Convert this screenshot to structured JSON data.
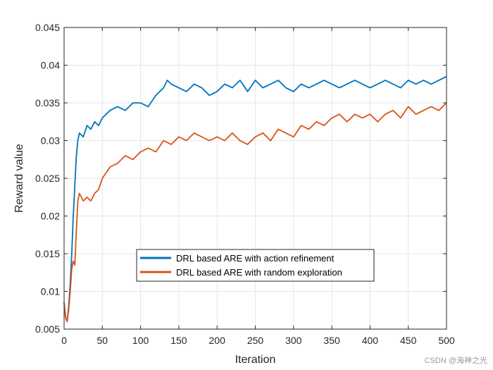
{
  "chart_data": {
    "type": "line",
    "title": "",
    "xlabel": "Iteration",
    "ylabel": "Reward value",
    "xlim": [
      0,
      500
    ],
    "ylim": [
      0.005,
      0.045
    ],
    "xticks": [
      0,
      50,
      100,
      150,
      200,
      250,
      300,
      350,
      400,
      450,
      500
    ],
    "yticks": [
      0.005,
      0.01,
      0.015,
      0.02,
      0.025,
      0.03,
      0.035,
      0.04,
      0.045
    ],
    "xtick_labels": [
      "0",
      "50",
      "100",
      "150",
      "200",
      "250",
      "300",
      "350",
      "400",
      "450",
      "500"
    ],
    "ytick_labels": [
      "0.005",
      "0.01",
      "0.015",
      "0.02",
      "0.025",
      "0.03",
      "0.035",
      "0.04",
      "0.045"
    ],
    "grid": true,
    "legend_position": "lower-center",
    "series": [
      {
        "name": "DRL based ARE with action refinement",
        "color": "#0072BD",
        "x": [
          0,
          2,
          4,
          6,
          8,
          10,
          12,
          14,
          16,
          18,
          20,
          25,
          30,
          35,
          40,
          45,
          50,
          60,
          70,
          80,
          90,
          100,
          110,
          120,
          130,
          135,
          140,
          150,
          160,
          170,
          180,
          190,
          200,
          210,
          220,
          230,
          240,
          250,
          260,
          270,
          280,
          290,
          300,
          310,
          320,
          330,
          340,
          350,
          360,
          370,
          380,
          390,
          400,
          410,
          420,
          430,
          440,
          450,
          460,
          470,
          480,
          490,
          500
        ],
        "values": [
          0.0085,
          0.0065,
          0.006,
          0.008,
          0.011,
          0.015,
          0.02,
          0.024,
          0.028,
          0.03,
          0.031,
          0.0305,
          0.032,
          0.0315,
          0.0325,
          0.032,
          0.033,
          0.034,
          0.0345,
          0.034,
          0.035,
          0.035,
          0.0345,
          0.036,
          0.037,
          0.038,
          0.0375,
          0.037,
          0.0365,
          0.0375,
          0.037,
          0.036,
          0.0365,
          0.0375,
          0.037,
          0.038,
          0.0365,
          0.038,
          0.037,
          0.0375,
          0.038,
          0.037,
          0.0365,
          0.0375,
          0.037,
          0.0375,
          0.038,
          0.0375,
          0.037,
          0.0375,
          0.038,
          0.0375,
          0.037,
          0.0375,
          0.038,
          0.0375,
          0.037,
          0.038,
          0.0375,
          0.038,
          0.0375,
          0.038,
          0.0385
        ]
      },
      {
        "name": "DRL based ARE with random exploration",
        "color": "#D95319",
        "x": [
          0,
          2,
          4,
          6,
          8,
          10,
          12,
          14,
          16,
          18,
          20,
          25,
          30,
          35,
          40,
          45,
          50,
          60,
          70,
          80,
          90,
          100,
          110,
          120,
          130,
          140,
          150,
          160,
          170,
          180,
          190,
          200,
          210,
          220,
          230,
          240,
          250,
          260,
          270,
          280,
          290,
          300,
          310,
          320,
          330,
          340,
          350,
          360,
          370,
          380,
          390,
          400,
          410,
          420,
          430,
          440,
          450,
          460,
          470,
          480,
          490,
          500
        ],
        "values": [
          0.0085,
          0.0065,
          0.006,
          0.0075,
          0.01,
          0.013,
          0.014,
          0.0135,
          0.018,
          0.022,
          0.023,
          0.022,
          0.0225,
          0.022,
          0.023,
          0.0235,
          0.025,
          0.0265,
          0.027,
          0.028,
          0.0275,
          0.0285,
          0.029,
          0.0285,
          0.03,
          0.0295,
          0.0305,
          0.03,
          0.031,
          0.0305,
          0.03,
          0.0305,
          0.03,
          0.031,
          0.03,
          0.0295,
          0.0305,
          0.031,
          0.03,
          0.0315,
          0.031,
          0.0305,
          0.032,
          0.0315,
          0.0325,
          0.032,
          0.033,
          0.0335,
          0.0325,
          0.0335,
          0.033,
          0.0335,
          0.0325,
          0.0335,
          0.034,
          0.033,
          0.0345,
          0.0335,
          0.034,
          0.0345,
          0.034,
          0.035
        ]
      }
    ]
  },
  "watermark": "CSDN @海神之光"
}
